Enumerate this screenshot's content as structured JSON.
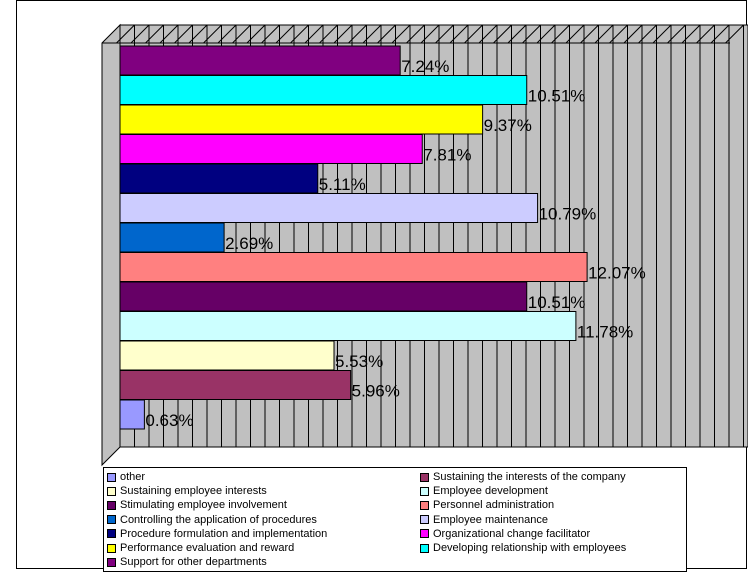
{
  "chart_data": {
    "type": "bar",
    "orientation": "horizontal",
    "title": "",
    "xlabel": "",
    "ylabel": "",
    "xlim": [
      0,
      14
    ],
    "grid": true,
    "legend_position": "bottom",
    "categories": [
      "Support for other departments",
      "Developing relationship with employees",
      "Performance evaluation and reward",
      "Organizational change facilitator",
      "Procedure formulation and implementation",
      "Employee maintenance",
      "Controlling the application of procedures",
      "Personnel administration",
      "Stimulating employee involvement",
      "Employee development",
      "Sustaining employee interests",
      "Sustaining the interests of the company",
      "other"
    ],
    "values": [
      7.24,
      10.51,
      9.37,
      7.81,
      5.11,
      10.79,
      2.69,
      12.07,
      10.51,
      11.78,
      5.53,
      5.96,
      0.63
    ],
    "data_labels": [
      "7.24%",
      "10.51%",
      "9.37%",
      "7.81%",
      "5.11%",
      "10.79%",
      "2.69%",
      "12.07%",
      "10.51%",
      "11.78%",
      "5.53%",
      "5.96%",
      "0.63%"
    ],
    "colors": [
      "#800080",
      "#00FFFF",
      "#FFFF00",
      "#FF00FF",
      "#000080",
      "#CCCCFF",
      "#0066CC",
      "#FF8080",
      "#660066",
      "#CCFFFF",
      "#FFFFCC",
      "#993366",
      "#9999FF"
    ],
    "plot_background": "#C0C0C0"
  },
  "legend": {
    "items": [
      {
        "label": "other",
        "color": "#9999FF"
      },
      {
        "label": "Sustaining the interests of the company",
        "color": "#993366"
      },
      {
        "label": "Sustaining employee interests",
        "color": "#FFFFCC"
      },
      {
        "label": "Employee development",
        "color": "#CCFFFF"
      },
      {
        "label": "Stimulating employee involvement",
        "color": "#660066"
      },
      {
        "label": "Personnel administration",
        "color": "#FF8080"
      },
      {
        "label": "Controlling the application of procedures",
        "color": "#0066CC"
      },
      {
        "label": "Employee maintenance",
        "color": "#CCCCFF"
      },
      {
        "label": "Procedure formulation and implementation",
        "color": "#000080"
      },
      {
        "label": "Organizational change facilitator",
        "color": "#FF00FF"
      },
      {
        "label": "Performance evaluation and reward",
        "color": "#FFFF00"
      },
      {
        "label": "Developing relationship with employees",
        "color": "#00FFFF"
      },
      {
        "label": "Support for other departments",
        "color": "#800080"
      }
    ]
  }
}
